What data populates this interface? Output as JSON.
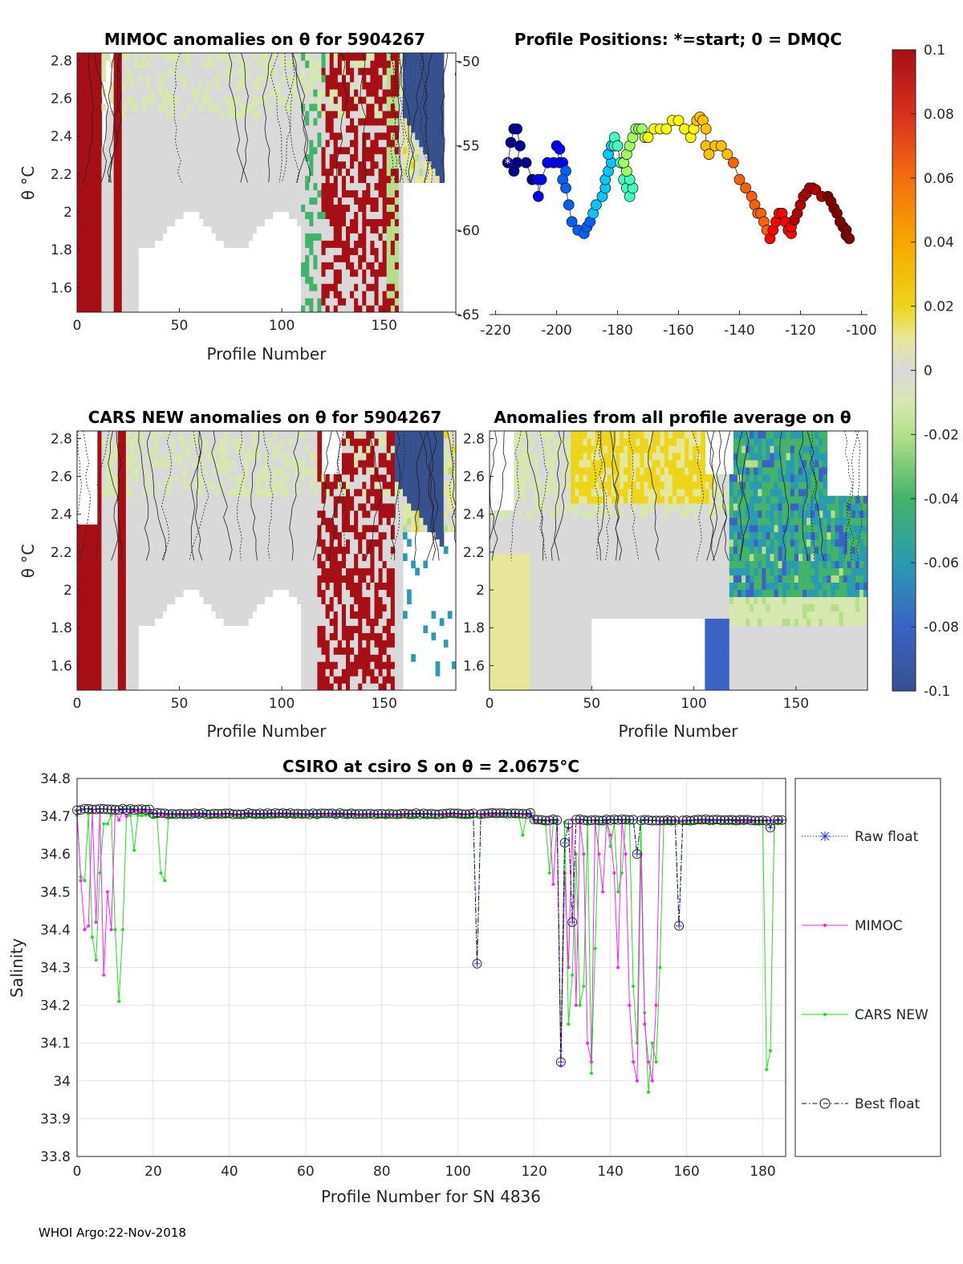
{
  "footer": "WHOI Argo:22-Nov-2018",
  "colorbar": {
    "ticks": [
      "0.1",
      "0.08",
      "0.06",
      "0.04",
      "0.02",
      "0",
      "-0.02",
      "-0.04",
      "-0.06",
      "-0.08",
      "-0.1"
    ],
    "range": [
      -0.1,
      0.1
    ]
  },
  "chart_data": [
    {
      "id": "mimoc",
      "type": "heatmap",
      "title": "MIMOC anomalies on θ  for 5904267",
      "xlabel": "Profile Number",
      "ylabel": "θ °C",
      "xticks": [
        "0",
        "50",
        "100",
        "150"
      ],
      "yticks": [
        "2.8",
        "2.6",
        "2.4",
        "2.2",
        "2",
        "1.8",
        "1.6"
      ],
      "xlim": [
        0,
        185
      ],
      "ylim": [
        1.47,
        2.84
      ]
    },
    {
      "id": "positions",
      "type": "scatter",
      "title": "Profile Positions: *=start; 0 = DMQC",
      "xticks": [
        "-220",
        "-200",
        "-180",
        "-160",
        "-140",
        "-120",
        "-100"
      ],
      "yticks": [
        "-50",
        "-55",
        "-60",
        "-65"
      ],
      "xlim": [
        -222,
        -98
      ],
      "ylim": [
        -65,
        -49.5
      ],
      "track_lon": [
        -216,
        -215,
        -214,
        -213,
        -212,
        -213,
        -214,
        -210,
        -208,
        -206,
        -206,
        -205,
        -203,
        -201,
        -199,
        -200,
        -199,
        -198,
        -197,
        -198,
        -197,
        -196,
        -195,
        -193,
        -191,
        -190,
        -189,
        -188,
        -187,
        -185,
        -184,
        -184,
        -183,
        -182,
        -183,
        -182,
        -181,
        -181,
        -180,
        -179,
        -178,
        -177,
        -176,
        -175,
        -176,
        -177,
        -178,
        -177,
        -176,
        -175,
        -174,
        -173,
        -172,
        -171,
        -170,
        -168,
        -166,
        -164,
        -162,
        -160,
        -158,
        -156,
        -155,
        -154,
        -153,
        -152,
        -151,
        -151,
        -150,
        -148,
        -146,
        -144,
        -142,
        -140,
        -138,
        -136,
        -135,
        -134,
        -133,
        -132,
        -131,
        -130,
        -129,
        -128,
        -127,
        -126,
        -125,
        -124,
        -123,
        -123,
        -122,
        -121,
        -120,
        -119,
        -118,
        -117,
        -116,
        -115,
        -113,
        -111,
        -110,
        -109,
        -108,
        -107,
        -106,
        -105,
        -105,
        -104
      ],
      "track_lat": [
        -56,
        -54.8,
        -54,
        -54,
        -55,
        -56,
        -56.5,
        -56,
        -57,
        -57,
        -58,
        -57,
        -56,
        -56,
        -56,
        -55,
        -55.2,
        -56,
        -56.5,
        -57,
        -57.5,
        -58.5,
        -59.5,
        -60,
        -60.2,
        -59.8,
        -59.5,
        -59,
        -58.5,
        -58,
        -57.5,
        -57,
        -56.5,
        -56,
        -55.5,
        -55,
        -55,
        -54.5,
        -55,
        -56,
        -57,
        -57.5,
        -58,
        -57.5,
        -57,
        -56.5,
        -56,
        -55.5,
        -55,
        -54.5,
        -54,
        -54,
        -54,
        -54.5,
        -54.5,
        -54,
        -54,
        -54,
        -53.5,
        -53.5,
        -54,
        -54.5,
        -54,
        -53.5,
        -53.3,
        -53.5,
        -54,
        -55,
        -55.5,
        -55,
        -55,
        -55.5,
        -56,
        -57,
        -57.5,
        -58,
        -58.5,
        -59,
        -59,
        -59.5,
        -60,
        -60.5,
        -60,
        -59.5,
        -59,
        -59,
        -59.5,
        -60,
        -60.2,
        -59.8,
        -59.4,
        -59,
        -58.5,
        -58,
        -57.8,
        -57.5,
        -57.5,
        -57.6,
        -58,
        -58,
        -58.3,
        -58.7,
        -59,
        -59.5,
        -59.8,
        -60,
        -60.3,
        -60.5
      ]
    },
    {
      "id": "cars",
      "type": "heatmap",
      "title": "CARS NEW anomalies on θ for 5904267",
      "xlabel": "Profile Number",
      "ylabel": "θ °C",
      "xticks": [
        "0",
        "50",
        "100",
        "150"
      ],
      "yticks": [
        "2.8",
        "2.6",
        "2.4",
        "2.2",
        "2",
        "1.8",
        "1.6"
      ],
      "xlim": [
        0,
        185
      ],
      "ylim": [
        1.47,
        2.84
      ]
    },
    {
      "id": "allavg",
      "type": "heatmap",
      "title": "Anomalies from all profile average on θ",
      "xlabel": "Profile Number",
      "xticks": [
        "0",
        "50",
        "100",
        "150"
      ],
      "yticks": [
        "2.8",
        "2.6",
        "2.4",
        "2.2",
        "2",
        "1.8",
        "1.6"
      ],
      "xlim": [
        0,
        185
      ],
      "ylim": [
        1.47,
        2.84
      ]
    },
    {
      "id": "salinity",
      "type": "line",
      "title": "CSIRO at csiro S on θ = 2.0675°C",
      "xlabel": "Profile Number for SN 4836",
      "ylabel": "Salinity",
      "xticks": [
        "0",
        "20",
        "40",
        "60",
        "80",
        "100",
        "120",
        "140",
        "160",
        "180"
      ],
      "yticks": [
        "34.8",
        "34.7",
        "34.6",
        "34.5",
        "34.4",
        "34.3",
        "34.2",
        "34.1",
        "34",
        "33.9",
        "33.8"
      ],
      "xlim": [
        0,
        186
      ],
      "ylim": [
        33.8,
        34.8
      ],
      "legend": [
        "Raw float",
        "MIMOC",
        "CARS NEW",
        "Best float"
      ],
      "float_dips": [
        [
          105,
          34.31
        ],
        [
          127,
          34.05
        ],
        [
          128,
          34.63
        ],
        [
          129,
          34.68
        ],
        [
          130,
          34.42
        ],
        [
          147,
          34.6
        ],
        [
          158,
          34.41
        ],
        [
          182,
          34.67
        ]
      ],
      "mimoc_dips": [
        [
          1,
          34.53
        ],
        [
          2,
          34.4
        ],
        [
          3,
          34.41
        ],
        [
          5,
          34.42
        ],
        [
          7,
          34.28
        ],
        [
          8,
          34.5
        ],
        [
          9,
          34.4
        ],
        [
          11,
          34.69
        ],
        [
          13,
          34.7
        ],
        [
          125,
          34.52
        ],
        [
          127,
          34.04
        ],
        [
          128,
          34.55
        ],
        [
          129,
          34.3
        ],
        [
          131,
          34.2
        ],
        [
          133,
          34.6
        ],
        [
          134,
          34.1
        ],
        [
          135,
          34.05
        ],
        [
          137,
          34.6
        ],
        [
          138,
          34.5
        ],
        [
          140,
          34.65
        ],
        [
          141,
          34.55
        ],
        [
          142,
          34.3
        ],
        [
          144,
          34.6
        ],
        [
          145,
          34.2
        ],
        [
          146,
          34.05
        ],
        [
          147,
          34.0
        ],
        [
          148,
          34.6
        ],
        [
          149,
          34.15
        ],
        [
          150,
          34.05
        ],
        [
          151,
          34.0
        ],
        [
          152,
          34.2
        ]
      ],
      "cars_dips": [
        [
          1,
          34.54
        ],
        [
          2,
          34.53
        ],
        [
          4,
          34.38
        ],
        [
          5,
          34.32
        ],
        [
          6,
          34.55
        ],
        [
          7,
          34.68
        ],
        [
          8,
          34.68
        ],
        [
          10,
          34.4
        ],
        [
          11,
          34.21
        ],
        [
          12,
          34.4
        ],
        [
          15,
          34.61
        ],
        [
          22,
          34.55
        ],
        [
          23,
          34.53
        ],
        [
          117,
          34.65
        ],
        [
          124,
          34.55
        ],
        [
          127,
          34.08
        ],
        [
          129,
          34.15
        ],
        [
          130,
          34.28
        ],
        [
          131,
          34.6
        ],
        [
          132,
          34.2
        ],
        [
          133,
          34.25
        ],
        [
          135,
          34.02
        ],
        [
          136,
          34.35
        ],
        [
          140,
          34.62
        ],
        [
          142,
          34.5
        ],
        [
          143,
          34.55
        ],
        [
          146,
          34.25
        ],
        [
          147,
          34.1
        ],
        [
          149,
          34.18
        ],
        [
          150,
          33.97
        ],
        [
          151,
          34.1
        ],
        [
          152,
          34.05
        ],
        [
          153,
          34.3
        ],
        [
          181,
          34.03
        ],
        [
          182,
          34.08
        ]
      ]
    }
  ]
}
